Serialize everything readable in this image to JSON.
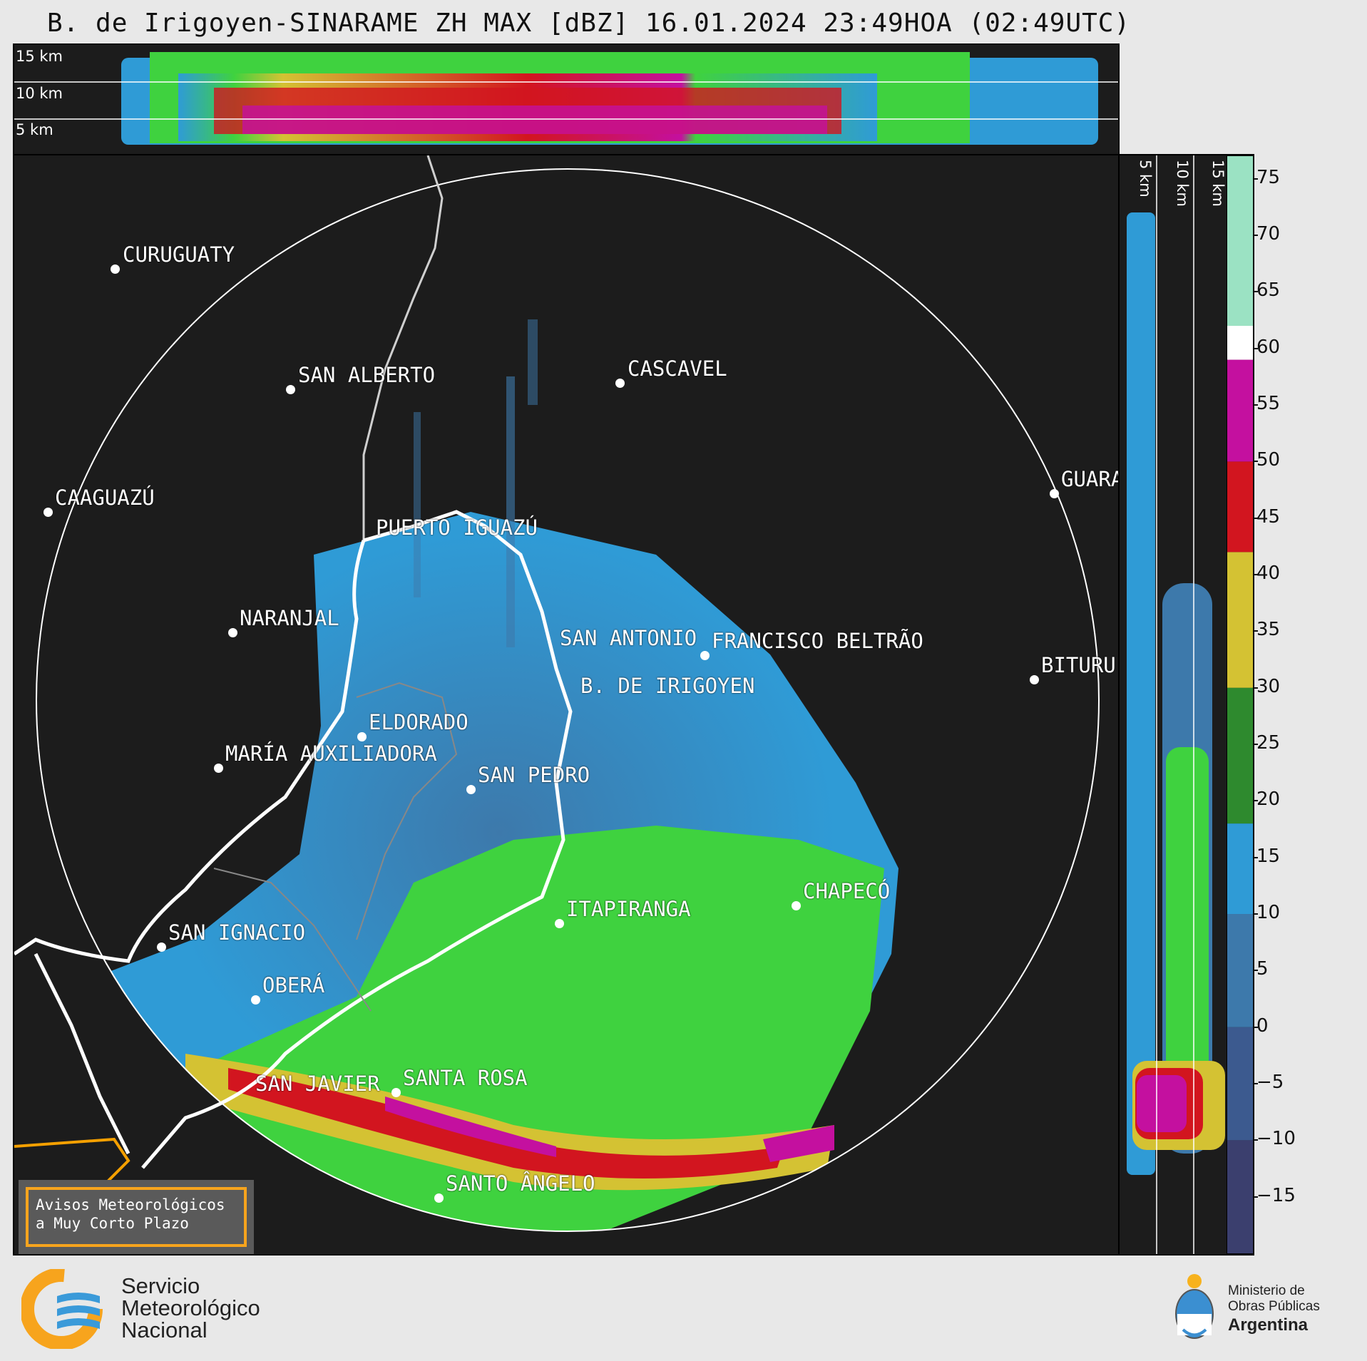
{
  "title": "B. de Irigoyen-SINARAME ZH MAX [dBZ] 16.01.2024 23:49HOA (02:49UTC)",
  "top_panel": {
    "labels": [
      "15 km",
      "10 km",
      "5 km"
    ]
  },
  "side_panel": {
    "labels": [
      "5 km",
      "10 km",
      "15 km"
    ]
  },
  "cities": [
    {
      "name": "CURUGUATY"
    },
    {
      "name": "SAN ALBERTO"
    },
    {
      "name": "CASCAVEL"
    },
    {
      "name": "CAAGUAZÚ"
    },
    {
      "name": "PUERTO IGUAZÚ"
    },
    {
      "name": "GUARA"
    },
    {
      "name": "NARANJAL"
    },
    {
      "name": "SAN ANTONIO"
    },
    {
      "name": "FRANCISCO BELTRÃO"
    },
    {
      "name": "BITURU"
    },
    {
      "name": "B. DE IRIGOYEN"
    },
    {
      "name": "ELDORADO"
    },
    {
      "name": "MARÍA AUXILIADORA"
    },
    {
      "name": "SAN PEDRO"
    },
    {
      "name": "CHAPECÓ"
    },
    {
      "name": "ITAPIRANGA"
    },
    {
      "name": "SAN IGNACIO"
    },
    {
      "name": "OBERÁ"
    },
    {
      "name": "SAN JAVIER"
    },
    {
      "name": "SANTA ROSA"
    },
    {
      "name": "SANTO ÂNGELO"
    }
  ],
  "colorbar": {
    "ticks": [
      "75",
      "70",
      "65",
      "60",
      "55",
      "50",
      "45",
      "40",
      "35",
      "30",
      "25",
      "20",
      "15",
      "10",
      "5",
      "0",
      "−5",
      "−10",
      "−15"
    ],
    "min": -20,
    "max": 77,
    "stops": [
      {
        "from": -20,
        "to": -10,
        "color": "#3b3f6e"
      },
      {
        "from": -10,
        "to": 0,
        "color": "#3c5a8f"
      },
      {
        "from": 0,
        "to": 10,
        "color": "#3d79ab"
      },
      {
        "from": 10,
        "to": 18,
        "color": "#2f9bd6"
      },
      {
        "from": 18,
        "to": 30,
        "color": "#2e8a2e"
      },
      {
        "from": 30,
        "to": 42,
        "color": "#d4c233"
      },
      {
        "from": 42,
        "to": 50,
        "color": "#d2151f"
      },
      {
        "from": 50,
        "to": 59,
        "color": "#c4109f"
      },
      {
        "from": 59,
        "to": 62,
        "color": "#ffffff"
      },
      {
        "from": 62,
        "to": 77,
        "color": "#9be2c3"
      }
    ]
  },
  "warning": {
    "line1": "Avisos Meteorológicos",
    "line2": "a Muy Corto Plazo"
  },
  "footer": {
    "smn_line1": "Servicio",
    "smn_line2": "Meteorológico",
    "smn_line3": "Nacional",
    "min_line1": "Ministerio de",
    "min_line2": "Obras Públicas",
    "min_line3": "Argentina"
  }
}
